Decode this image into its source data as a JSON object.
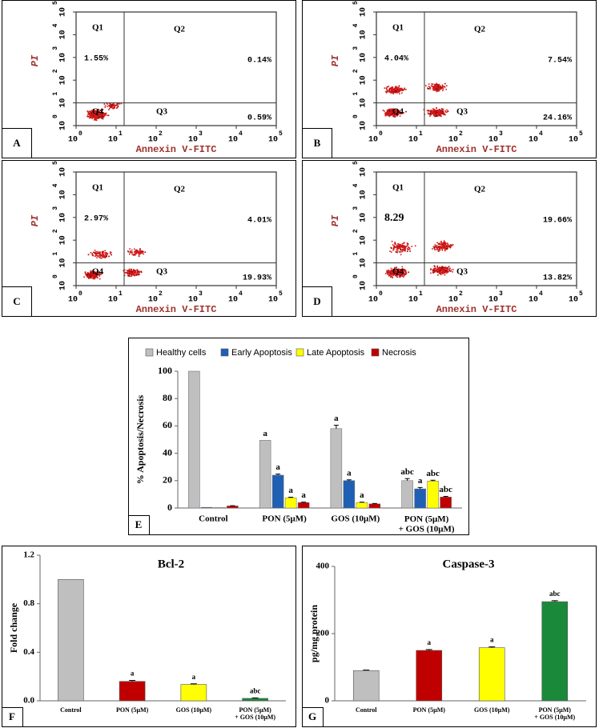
{
  "chart_data": [
    {
      "type": "flow",
      "panel_label": "A",
      "xlabel": "Annexin V-FITC",
      "ylabel": "PI",
      "log_x": true,
      "log_y": true,
      "xlim": [
        1,
        100000
      ],
      "ylim": [
        1,
        100000
      ],
      "xticks": [
        {
          "value": 1,
          "label": "10",
          "exponent": "0"
        },
        {
          "value": 10,
          "label": "10",
          "exponent": "1"
        },
        {
          "value": 100,
          "label": "10",
          "exponent": "2"
        },
        {
          "value": 1000,
          "label": "10",
          "exponent": "3"
        },
        {
          "value": 10000,
          "label": "10",
          "exponent": "4"
        },
        {
          "value": 100000,
          "label": "10",
          "exponent": "5"
        }
      ],
      "yticks": [
        {
          "value": 1,
          "label": "10",
          "exponent": "0"
        },
        {
          "value": 10,
          "label": "10",
          "exponent": "1"
        },
        {
          "value": 100,
          "label": "10",
          "exponent": "2"
        },
        {
          "value": 1000,
          "label": "10",
          "exponent": "3"
        },
        {
          "value": 10000,
          "label": "10",
          "exponent": "4"
        },
        {
          "value": 100000,
          "label": "10",
          "exponent": "5"
        }
      ],
      "quadrants": [
        {
          "name": "Q1",
          "label": "1.55%"
        },
        {
          "name": "Q2",
          "label": "0.14%"
        },
        {
          "name": "Q3",
          "label": "0.59%"
        },
        {
          "name": "Q4"
        }
      ]
    },
    {
      "type": "flow",
      "panel_label": "B",
      "xlabel": "Annexin V-FITC",
      "ylabel": "PI",
      "log_x": true,
      "log_y": true,
      "xlim": [
        1,
        100000
      ],
      "ylim": [
        1,
        100000
      ],
      "xticks": [
        {
          "value": 1,
          "label": "10",
          "exponent": "0"
        },
        {
          "value": 10,
          "label": "10",
          "exponent": "1"
        },
        {
          "value": 100,
          "label": "10",
          "exponent": "2"
        },
        {
          "value": 1000,
          "label": "10",
          "exponent": "3"
        },
        {
          "value": 10000,
          "label": "10",
          "exponent": "4"
        },
        {
          "value": 100000,
          "label": "10",
          "exponent": "5"
        }
      ],
      "yticks": [
        {
          "value": 1,
          "label": "10",
          "exponent": "0"
        },
        {
          "value": 10,
          "label": "10",
          "exponent": "1"
        },
        {
          "value": 100,
          "label": "10",
          "exponent": "2"
        },
        {
          "value": 1000,
          "label": "10",
          "exponent": "3"
        },
        {
          "value": 10000,
          "label": "10",
          "exponent": "4"
        },
        {
          "value": 100000,
          "label": "10",
          "exponent": "5"
        }
      ],
      "quadrants": [
        {
          "name": "Q1",
          "label": "4.04%"
        },
        {
          "name": "Q2",
          "label": "7.54%"
        },
        {
          "name": "Q3",
          "label": "24.16%"
        },
        {
          "name": "Q4"
        }
      ]
    },
    {
      "type": "flow",
      "panel_label": "C",
      "xlabel": "Annexin V-FITC",
      "ylabel": "PI",
      "log_x": true,
      "log_y": true,
      "xlim": [
        1,
        100000
      ],
      "ylim": [
        1,
        100000
      ],
      "xticks": [
        {
          "value": 1,
          "label": "10",
          "exponent": "0"
        },
        {
          "value": 10,
          "label": "10",
          "exponent": "1"
        },
        {
          "value": 100,
          "label": "10",
          "exponent": "2"
        },
        {
          "value": 1000,
          "label": "10",
          "exponent": "3"
        },
        {
          "value": 10000,
          "label": "10",
          "exponent": "4"
        },
        {
          "value": 100000,
          "label": "10",
          "exponent": "5"
        }
      ],
      "yticks": [
        {
          "value": 1,
          "label": "10",
          "exponent": "0"
        },
        {
          "value": 10,
          "label": "10",
          "exponent": "1"
        },
        {
          "value": 100,
          "label": "10",
          "exponent": "2"
        },
        {
          "value": 1000,
          "label": "10",
          "exponent": "3"
        },
        {
          "value": 10000,
          "label": "10",
          "exponent": "4"
        },
        {
          "value": 100000,
          "label": "10",
          "exponent": "5"
        }
      ],
      "quadrants": [
        {
          "name": "Q1",
          "label": "2.97%"
        },
        {
          "name": "Q2",
          "label": "4.01%"
        },
        {
          "name": "Q3",
          "label": "19.93%"
        },
        {
          "name": "Q4"
        }
      ]
    },
    {
      "type": "flow",
      "panel_label": "D",
      "xlabel": "Annexin V-FITC",
      "ylabel": "PI",
      "log_x": true,
      "log_y": true,
      "xlim": [
        1,
        100000
      ],
      "ylim": [
        1,
        100000
      ],
      "xticks": [
        {
          "value": 1,
          "label": "10",
          "exponent": "0"
        },
        {
          "value": 10,
          "label": "10",
          "exponent": "1"
        },
        {
          "value": 100,
          "label": "10",
          "exponent": "2"
        },
        {
          "value": 1000,
          "label": "10",
          "exponent": "3"
        },
        {
          "value": 10000,
          "label": "10",
          "exponent": "4"
        },
        {
          "value": 100000,
          "label": "10",
          "exponent": "5"
        }
      ],
      "yticks": [
        {
          "value": 1,
          "label": "10",
          "exponent": "0"
        },
        {
          "value": 10,
          "label": "10",
          "exponent": "1"
        },
        {
          "value": 100,
          "label": "10",
          "exponent": "2"
        },
        {
          "value": 1000,
          "label": "10",
          "exponent": "3"
        },
        {
          "value": 10000,
          "label": "10",
          "exponent": "4"
        },
        {
          "value": 100000,
          "label": "10",
          "exponent": "5"
        }
      ],
      "quadrants": [
        {
          "name": "Q1",
          "label": "8.29"
        },
        {
          "name": "Q2",
          "label": "19.66%"
        },
        {
          "name": "Q3",
          "label": "13.82%"
        },
        {
          "name": "Q4"
        }
      ]
    },
    {
      "type": "grouped_bar",
      "panel_label": "E",
      "ylabel": "% Apoptosis/Necrosis",
      "categories": [
        "Control",
        "PON (5μM)",
        "GOS (10μM)",
        "PON (5μM)\n+ GOS (10μM)"
      ],
      "ylim": [
        0,
        100
      ],
      "yticks": [
        0,
        20,
        40,
        60,
        80,
        100
      ],
      "legend": "top",
      "series": [
        {
          "name": "Healthy cells",
          "color": "#bfbfbf",
          "values": [
            100,
            49.5,
            58,
            20
          ],
          "errors": [
            0,
            0,
            2.5,
            1.5
          ],
          "annotations": [
            null,
            "a",
            "a",
            "abc"
          ]
        },
        {
          "name": "Early Apoptosis",
          "color": "#1f5fb4",
          "values": [
            0.5,
            24,
            20,
            14
          ],
          "errors": [
            0,
            0.8,
            0.6,
            1
          ],
          "annotations": [
            null,
            "a",
            "a",
            "a"
          ]
        },
        {
          "name": "Late Apoptosis",
          "color": "#ffff00",
          "values": [
            0.3,
            7.5,
            4,
            19.7
          ],
          "errors": [
            0,
            0.4,
            0.3,
            0.6
          ],
          "annotations": [
            null,
            "a",
            "a",
            "abc"
          ]
        },
        {
          "name": "Necrosis",
          "color": "#c00000",
          "values": [
            1.5,
            4,
            3,
            8
          ],
          "errors": [
            0.2,
            0.3,
            0.3,
            0.5
          ],
          "annotations": [
            null,
            "a",
            null,
            "abc"
          ]
        }
      ]
    },
    {
      "type": "bar",
      "panel_label": "F",
      "title": "Bcl-2",
      "ylabel": "Fold change",
      "categories": [
        "Control",
        "PON (5µM)",
        "GOS (10µM)",
        "PON (5µM)\n+ GOS (10µM)"
      ],
      "values": [
        1,
        0.16,
        0.135,
        0.02
      ],
      "errors": [
        0,
        0.008,
        0.005,
        0.004
      ],
      "annotations": [
        null,
        "a",
        "a",
        "abc"
      ],
      "colors": [
        "#bfbfbf",
        "#c00000",
        "#ffff00",
        "#1a8a3a"
      ],
      "ylim": [
        0,
        1.2
      ],
      "yticks": [
        {
          "value": 0,
          "label": "0.0"
        },
        {
          "value": 0.4,
          "label": "0.4"
        },
        {
          "value": 0.8,
          "label": "0.8"
        },
        {
          "value": 1.2,
          "label": "1.2"
        }
      ]
    },
    {
      "type": "bar",
      "panel_label": "G",
      "title": "Caspase-3",
      "ylabel": "pg/mg protein",
      "categories": [
        "Control",
        "PON (5µM)",
        "GOS (10µM)",
        "PON (5µM)\n+ GOS (10µM)"
      ],
      "values": [
        90,
        150,
        158,
        295
      ],
      "errors": [
        1.5,
        2.5,
        2.5,
        3
      ],
      "annotations": [
        null,
        "a",
        "a",
        "abc"
      ],
      "colors": [
        "#bfbfbf",
        "#c00000",
        "#ffff00",
        "#1a8a3a"
      ],
      "ylim": [
        0,
        400
      ],
      "yticks": [
        0,
        200,
        400
      ]
    }
  ]
}
